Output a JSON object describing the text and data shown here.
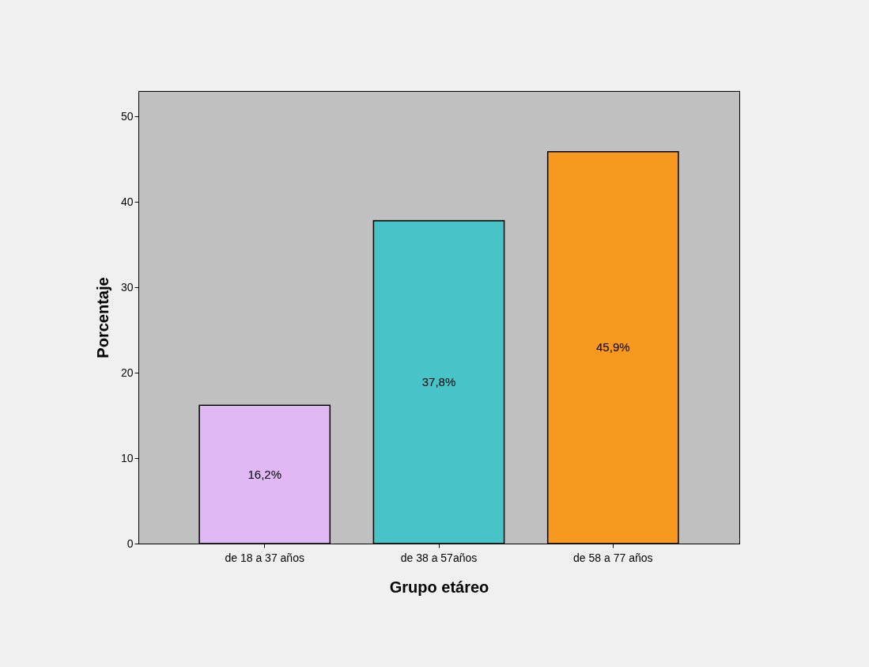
{
  "chart_data": {
    "type": "bar",
    "xlabel": "Grupo etáreo",
    "ylabel": "Porcentaje",
    "categories": [
      "de 18 a 37 años",
      "de 38 a 57años",
      "de 58 a 77 años"
    ],
    "values": [
      16.2,
      37.8,
      45.9
    ],
    "colors": [
      "#e0b8f4",
      "#48c3c8",
      "#f7981f"
    ],
    "value_labels": [
      "16,2%",
      "37,8%",
      "45,9%"
    ],
    "ylim": [
      0,
      53
    ],
    "yticks": [
      0,
      10,
      20,
      30,
      40,
      50
    ],
    "grid": false
  }
}
